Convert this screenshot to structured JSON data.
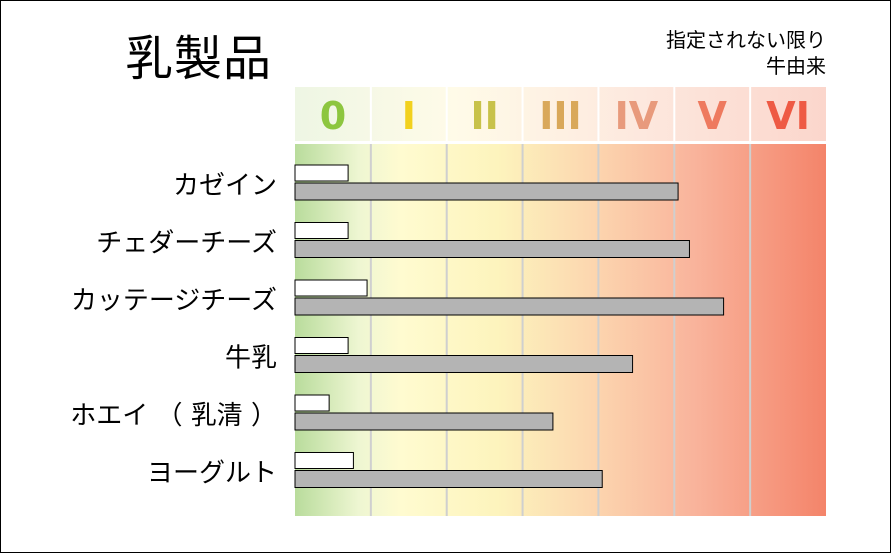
{
  "title": "乳製品",
  "note": {
    "line1": "指定されない限り",
    "line2": "牛由来"
  },
  "chart_data": {
    "type": "bar",
    "classes": [
      "0",
      "I",
      "II",
      "III",
      "IV",
      "V",
      "VI"
    ],
    "class_colors": [
      "#8dc63f",
      "#f2d11e",
      "#c8c24a",
      "#d9a85a",
      "#e89a7c",
      "#ee7a5f",
      "#ee5a44"
    ],
    "categories": [
      "カゼイン",
      "チェダーチーズ",
      "カッテージチーズ",
      "牛乳",
      "ホエイ （ 乳清 ）",
      "ヨーグルト"
    ],
    "series": [
      {
        "values": [
          0.7,
          0.7,
          0.95,
          0.7,
          0.45,
          0.77
        ]
      },
      {
        "values": [
          5.05,
          5.2,
          5.65,
          4.45,
          3.4,
          4.05
        ]
      }
    ],
    "xlim": [
      0,
      7
    ],
    "colors": {
      "small_bar": "#ffffff",
      "large_bar": "#b4b4b4",
      "bar_stroke": "#000000"
    }
  }
}
